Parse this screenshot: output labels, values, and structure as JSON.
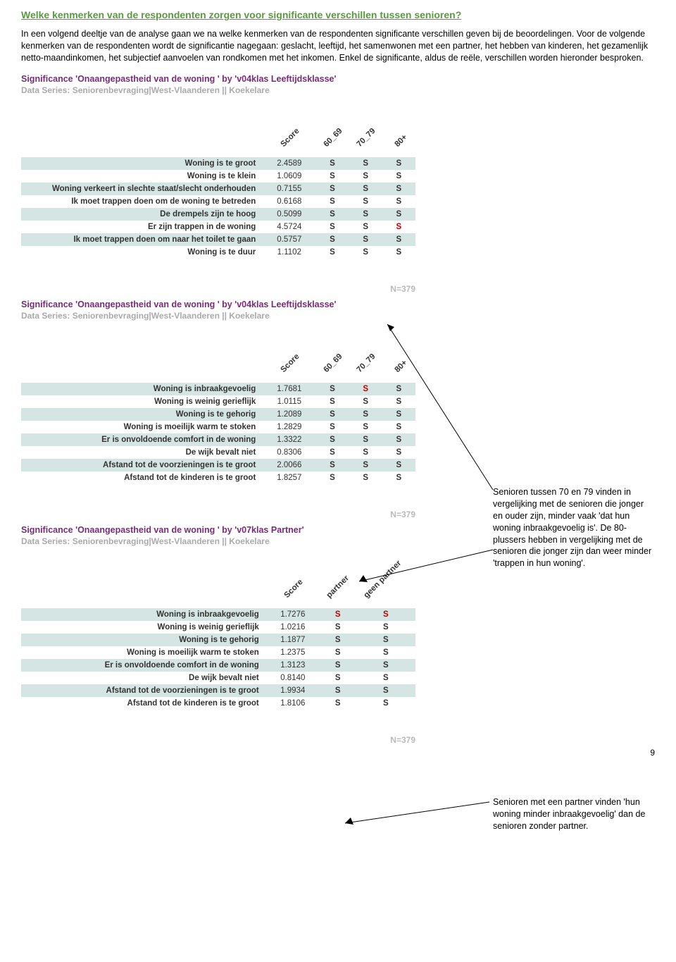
{
  "heading": "Welke kenmerken van de respondenten zorgen voor significante verschillen tussen senioren?",
  "intro": "In een volgend deeltje van de analyse gaan we na welke kenmerken van de respondenten significante verschillen geven bij de beoordelingen.\nVoor de volgende kenmerken van de respondenten wordt de significantie nagegaan: geslacht, leeftijd, het samenwonen met een partner, het hebben van kinderen, het gezamenlijk netto-maandinkomen, het subjectief aanvoelen van rondkomen met het inkomen. Enkel de significante, aldus de reële, verschillen worden hieronder besproken.",
  "tables": [
    {
      "title": "Significance 'Onaangepastheid van de woning ' by 'v04klas Leeftijdsklasse'",
      "subtitle": "Data Series: Seniorenbevraging|West-Vlaanderen || Koekelare",
      "score_label": "Score",
      "cols": [
        "60_69",
        "70_79",
        "80+"
      ],
      "rows": [
        {
          "label": "Woning is te groot",
          "score": "2.4589",
          "sig": [
            "S",
            "S",
            "S"
          ],
          "red": [
            false,
            false,
            false
          ]
        },
        {
          "label": "Woning is te klein",
          "score": "1.0609",
          "sig": [
            "S",
            "S",
            "S"
          ],
          "red": [
            false,
            false,
            false
          ]
        },
        {
          "label": "Woning verkeert in slechte staat/slecht onderhouden",
          "score": "0.7155",
          "sig": [
            "S",
            "S",
            "S"
          ],
          "red": [
            false,
            false,
            false
          ]
        },
        {
          "label": "Ik moet trappen doen om de woning te betreden",
          "score": "0.6168",
          "sig": [
            "S",
            "S",
            "S"
          ],
          "red": [
            false,
            false,
            false
          ]
        },
        {
          "label": "De drempels zijn te hoog",
          "score": "0.5099",
          "sig": [
            "S",
            "S",
            "S"
          ],
          "red": [
            false,
            false,
            false
          ]
        },
        {
          "label": "Er zijn trappen in de woning",
          "score": "4.5724",
          "sig": [
            "S",
            "S",
            "S"
          ],
          "red": [
            false,
            false,
            true
          ]
        },
        {
          "label": "Ik moet trappen doen om naar het toilet te gaan",
          "score": "0.5757",
          "sig": [
            "S",
            "S",
            "S"
          ],
          "red": [
            false,
            false,
            false
          ]
        },
        {
          "label": "Woning is te duur",
          "score": "1.1102",
          "sig": [
            "S",
            "S",
            "S"
          ],
          "red": [
            false,
            false,
            false
          ]
        }
      ],
      "n": "N=379"
    },
    {
      "title": "Significance 'Onaangepastheid van de woning ' by 'v04klas Leeftijdsklasse'",
      "subtitle": "Data Series: Seniorenbevraging|West-Vlaanderen || Koekelare",
      "score_label": "Score",
      "cols": [
        "60_69",
        "70_79",
        "80+"
      ],
      "rows": [
        {
          "label": "Woning is inbraakgevoelig",
          "score": "1.7681",
          "sig": [
            "S",
            "S",
            "S"
          ],
          "red": [
            false,
            true,
            false
          ]
        },
        {
          "label": "Woning is weinig gerieflijk",
          "score": "1.0115",
          "sig": [
            "S",
            "S",
            "S"
          ],
          "red": [
            false,
            false,
            false
          ]
        },
        {
          "label": "Woning is te gehorig",
          "score": "1.2089",
          "sig": [
            "S",
            "S",
            "S"
          ],
          "red": [
            false,
            false,
            false
          ]
        },
        {
          "label": "Woning is moeilijk warm te stoken",
          "score": "1.2829",
          "sig": [
            "S",
            "S",
            "S"
          ],
          "red": [
            false,
            false,
            false
          ]
        },
        {
          "label": "Er is onvoldoende comfort in de woning",
          "score": "1.3322",
          "sig": [
            "S",
            "S",
            "S"
          ],
          "red": [
            false,
            false,
            false
          ]
        },
        {
          "label": "De wijk bevalt niet",
          "score": "0.8306",
          "sig": [
            "S",
            "S",
            "S"
          ],
          "red": [
            false,
            false,
            false
          ]
        },
        {
          "label": "Afstand tot de voorzieningen is te groot",
          "score": "2.0066",
          "sig": [
            "S",
            "S",
            "S"
          ],
          "red": [
            false,
            false,
            false
          ]
        },
        {
          "label": "Afstand tot de kinderen is te groot",
          "score": "1.8257",
          "sig": [
            "S",
            "S",
            "S"
          ],
          "red": [
            false,
            false,
            false
          ]
        }
      ],
      "n": "N=379"
    },
    {
      "title": "Significance 'Onaangepastheid van de woning ' by 'v07klas Partner'",
      "subtitle": "Data Series: Seniorenbevraging|West-Vlaanderen || Koekelare",
      "score_label": "Score",
      "cols": [
        "partner",
        "geen partner"
      ],
      "rows": [
        {
          "label": "Woning is inbraakgevoelig",
          "score": "1.7276",
          "sig": [
            "S",
            "S"
          ],
          "red": [
            true,
            true
          ]
        },
        {
          "label": "Woning is weinig gerieflijk",
          "score": "1.0216",
          "sig": [
            "S",
            "S"
          ],
          "red": [
            false,
            false
          ]
        },
        {
          "label": "Woning is te gehorig",
          "score": "1.1877",
          "sig": [
            "S",
            "S"
          ],
          "red": [
            false,
            false
          ]
        },
        {
          "label": "Woning is moeilijk warm te stoken",
          "score": "1.2375",
          "sig": [
            "S",
            "S"
          ],
          "red": [
            false,
            false
          ]
        },
        {
          "label": "Er is onvoldoende comfort in de woning",
          "score": "1.3123",
          "sig": [
            "S",
            "S"
          ],
          "red": [
            false,
            false
          ]
        },
        {
          "label": "De wijk bevalt niet",
          "score": "0.8140",
          "sig": [
            "S",
            "S"
          ],
          "red": [
            false,
            false
          ]
        },
        {
          "label": "Afstand tot de voorzieningen is te groot",
          "score": "1.9934",
          "sig": [
            "S",
            "S"
          ],
          "red": [
            false,
            false
          ]
        },
        {
          "label": "Afstand tot de kinderen is te groot",
          "score": "1.8106",
          "sig": [
            "S",
            "S"
          ],
          "red": [
            false,
            false
          ]
        }
      ],
      "n": "N=379"
    }
  ],
  "annot1": "Senioren tussen 70 en 79 vinden in vergelijking met de senioren die jonger en ouder zijn, minder vaak 'dat hun woning inbraakgevoelig is'. De 80-plussers hebben in vergelijking met de senioren die jonger zijn dan weer minder 'trappen in hun woning'.",
  "annot2": "Senioren met een partner vinden 'hun woning minder inbraakgevoelig' dan de senioren zonder partner.",
  "pagenum": "9"
}
